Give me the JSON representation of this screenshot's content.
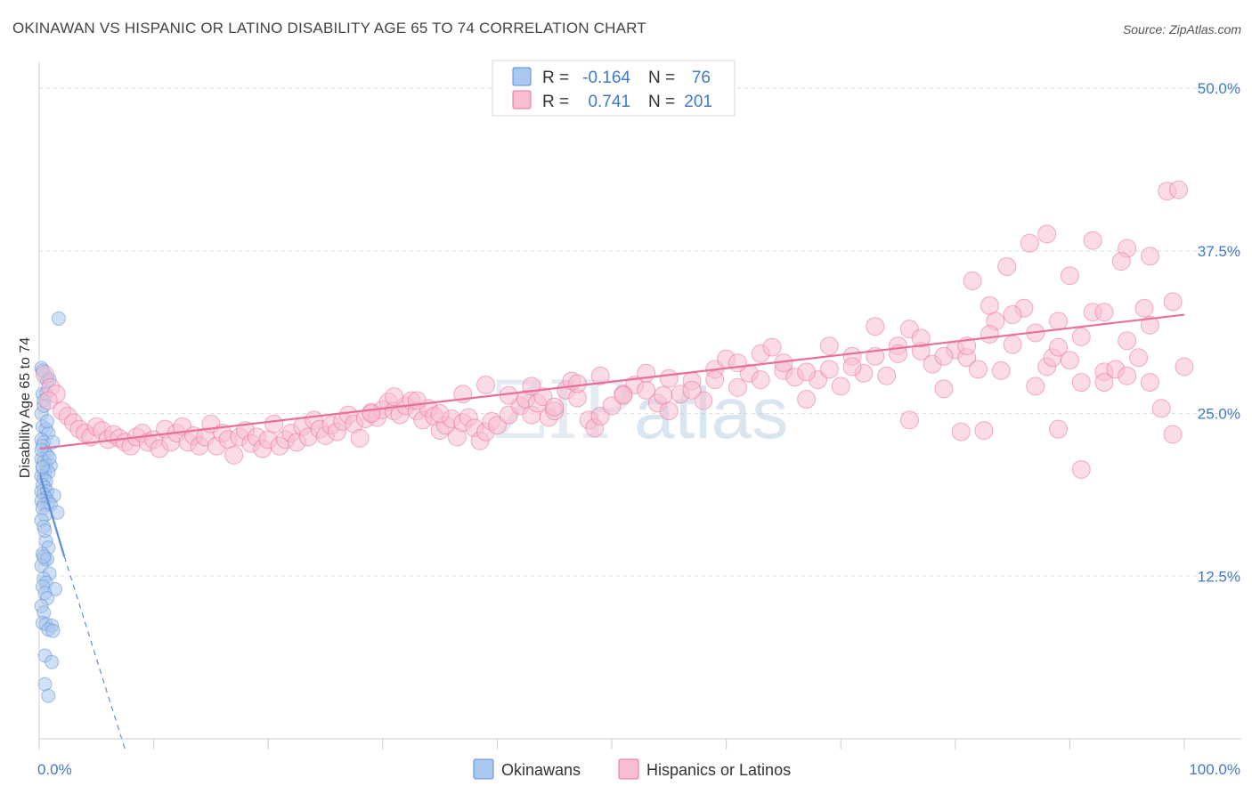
{
  "title": "OKINAWAN VS HISPANIC OR LATINO DISABILITY AGE 65 TO 74 CORRELATION CHART",
  "source": "Source: ZipAtlas.com",
  "watermark": {
    "a": "ZIP",
    "b": "atlas"
  },
  "chart_data": {
    "type": "scatter",
    "ylabel": "Disability Age 65 to 74",
    "xlim": [
      0,
      100
    ],
    "ylim": [
      0,
      52
    ],
    "x_tick_labels": [
      {
        "v": 0,
        "label": "0.0%"
      },
      {
        "v": 100,
        "label": "100.0%"
      }
    ],
    "y_tick_labels": [
      {
        "v": 12.5,
        "label": "12.5%"
      },
      {
        "v": 25,
        "label": "25.0%"
      },
      {
        "v": 37.5,
        "label": "37.5%"
      },
      {
        "v": 50,
        "label": "50.0%"
      }
    ],
    "grid": true,
    "legend": {
      "placement": "top-center",
      "rows": [
        {
          "r_label": "R =",
          "r_value": "-0.164",
          "n_label": "N =",
          "n_value": "76",
          "color": "#8ab4ea"
        },
        {
          "r_label": "R =",
          "r_value": "0.741",
          "n_label": "N =",
          "n_value": "201",
          "color": "#f3a5c0"
        }
      ]
    },
    "series": [
      {
        "name": "Okinawans",
        "color": "#5b8fd6",
        "fill": "#a9c7ef",
        "trend": {
          "x0": 0,
          "y0": 20.5,
          "x1": 2.2,
          "y1": 14.0,
          "dash_to_x": 7.5,
          "dash_to_y": -1
        },
        "points": [
          [
            0.2,
            28.5
          ],
          [
            0.5,
            28
          ],
          [
            0.7,
            27.5
          ],
          [
            0.3,
            26.5
          ],
          [
            0.6,
            26.5
          ],
          [
            0.4,
            26
          ],
          [
            0.2,
            25
          ],
          [
            0.3,
            24
          ],
          [
            0.6,
            23.8
          ],
          [
            0.8,
            23.5
          ],
          [
            0.2,
            23
          ],
          [
            0.4,
            22.8
          ],
          [
            1.2,
            22.8
          ],
          [
            0.3,
            22.5
          ],
          [
            0.5,
            22
          ],
          [
            0.7,
            21.8
          ],
          [
            0.2,
            21.5
          ],
          [
            0.4,
            21.3
          ],
          [
            0.6,
            21
          ],
          [
            1.0,
            21
          ],
          [
            0.3,
            20.8
          ],
          [
            0.5,
            20.5
          ],
          [
            0.8,
            20.5
          ],
          [
            0.2,
            20.2
          ],
          [
            0.4,
            20
          ],
          [
            0.6,
            19.8
          ],
          [
            0.3,
            19.5
          ],
          [
            0.5,
            19.3
          ],
          [
            0.2,
            19
          ],
          [
            0.7,
            19
          ],
          [
            0.4,
            18.8
          ],
          [
            1.3,
            18.7
          ],
          [
            0.6,
            18.5
          ],
          [
            0.2,
            18.3
          ],
          [
            0.8,
            18.2
          ],
          [
            0.4,
            18
          ],
          [
            1.0,
            18
          ],
          [
            0.3,
            17.7
          ],
          [
            1.6,
            17.4
          ],
          [
            0.5,
            17.2
          ],
          [
            0.2,
            16.8
          ],
          [
            0.4,
            16.3
          ],
          [
            0.6,
            15.2
          ],
          [
            0.8,
            14.7
          ],
          [
            0.3,
            14.2
          ],
          [
            0.5,
            13.8
          ],
          [
            0.7,
            13.8
          ],
          [
            0.2,
            13.3
          ],
          [
            0.9,
            12.7
          ],
          [
            0.4,
            12.3
          ],
          [
            0.6,
            12
          ],
          [
            0.3,
            11.7
          ],
          [
            1.4,
            11.5
          ],
          [
            0.5,
            11.2
          ],
          [
            0.7,
            10.8
          ],
          [
            0.2,
            10.2
          ],
          [
            0.4,
            9.7
          ],
          [
            0.3,
            8.9
          ],
          [
            0.6,
            8.8
          ],
          [
            1.1,
            8.7
          ],
          [
            0.8,
            8.4
          ],
          [
            1.2,
            8.3
          ],
          [
            0.5,
            6.4
          ],
          [
            1.1,
            5.9
          ],
          [
            0.5,
            4.2
          ],
          [
            0.8,
            3.3
          ],
          [
            1.7,
            32.3
          ],
          [
            0.3,
            28.3
          ],
          [
            0.9,
            27.6
          ],
          [
            0.4,
            25.6
          ],
          [
            0.7,
            24.4
          ],
          [
            0.2,
            22.2
          ],
          [
            0.9,
            21.6
          ],
          [
            0.3,
            20.9
          ],
          [
            0.5,
            16.0
          ],
          [
            0.4,
            14.0
          ]
        ]
      },
      {
        "name": "Hispanics or Latinos",
        "color": "#e86f9b",
        "fill": "#f7bdd1",
        "trend": {
          "x0": 0,
          "y0": 22.3,
          "x1": 100,
          "y1": 32.6
        },
        "points": [
          [
            0.5,
            28
          ],
          [
            1,
            27
          ],
          [
            1.5,
            26.5
          ],
          [
            0.8,
            26
          ],
          [
            2,
            25.2
          ],
          [
            2.5,
            24.8
          ],
          [
            3,
            24.3
          ],
          [
            3.5,
            23.8
          ],
          [
            4,
            23.5
          ],
          [
            4.5,
            23.2
          ],
          [
            5,
            24
          ],
          [
            5.5,
            23.7
          ],
          [
            6,
            23
          ],
          [
            6.5,
            23.4
          ],
          [
            7,
            23.1
          ],
          [
            7.5,
            22.8
          ],
          [
            8,
            22.5
          ],
          [
            8.5,
            23.2
          ],
          [
            9,
            23.5
          ],
          [
            9.5,
            22.8
          ],
          [
            10,
            23
          ],
          [
            10.5,
            22.3
          ],
          [
            11,
            23.8
          ],
          [
            11.5,
            22.8
          ],
          [
            12,
            23.5
          ],
          [
            12.5,
            24
          ],
          [
            13,
            22.8
          ],
          [
            13.5,
            23.3
          ],
          [
            14,
            22.5
          ],
          [
            14.5,
            23.2
          ],
          [
            15,
            24.2
          ],
          [
            15.5,
            22.5
          ],
          [
            16,
            23.5
          ],
          [
            16.5,
            23
          ],
          [
            17,
            21.8
          ],
          [
            17.5,
            23.2
          ],
          [
            18,
            23.7
          ],
          [
            18.5,
            22.7
          ],
          [
            19,
            23.2
          ],
          [
            19.5,
            22.3
          ],
          [
            20,
            23
          ],
          [
            20.5,
            24.2
          ],
          [
            21,
            22.5
          ],
          [
            21.5,
            23
          ],
          [
            22,
            23.5
          ],
          [
            22.5,
            22.8
          ],
          [
            23,
            24
          ],
          [
            23.5,
            23.2
          ],
          [
            24,
            24.5
          ],
          [
            24.5,
            23.8
          ],
          [
            25,
            23.3
          ],
          [
            25.5,
            24.1
          ],
          [
            26,
            23.6
          ],
          [
            26.5,
            24.4
          ],
          [
            27,
            24.9
          ],
          [
            27.5,
            24.2
          ],
          [
            28,
            23.1
          ],
          [
            28.5,
            24.6
          ],
          [
            29,
            25.1
          ],
          [
            29.5,
            24.7
          ],
          [
            30,
            25.3
          ],
          [
            30.5,
            25.9
          ],
          [
            31,
            25.2
          ],
          [
            31.5,
            24.9
          ],
          [
            32,
            25.6
          ],
          [
            32.5,
            26
          ],
          [
            33,
            25.2
          ],
          [
            33.5,
            24.5
          ],
          [
            34,
            25.4
          ],
          [
            34.5,
            24.8
          ],
          [
            35,
            23.7
          ],
          [
            35.5,
            24.1
          ],
          [
            36,
            24.6
          ],
          [
            36.5,
            23.2
          ],
          [
            37,
            24.3
          ],
          [
            37.5,
            24.7
          ],
          [
            38,
            23.9
          ],
          [
            38.5,
            22.9
          ],
          [
            39,
            23.6
          ],
          [
            39.5,
            24.4
          ],
          [
            40,
            24.1
          ],
          [
            41,
            24.9
          ],
          [
            42,
            25.6
          ],
          [
            42.5,
            26.1
          ],
          [
            43,
            24.9
          ],
          [
            43.5,
            25.8
          ],
          [
            44,
            26.3
          ],
          [
            44.5,
            24.7
          ],
          [
            45,
            25.2
          ],
          [
            46,
            26.8
          ],
          [
            46.5,
            27.5
          ],
          [
            47,
            26.2
          ],
          [
            48,
            24.5
          ],
          [
            48.5,
            23.9
          ],
          [
            49,
            24.8
          ],
          [
            50,
            25.6
          ],
          [
            51,
            26.5
          ],
          [
            52,
            27.2
          ],
          [
            53,
            26.8
          ],
          [
            54,
            25.8
          ],
          [
            54.5,
            26.4
          ],
          [
            55,
            25.2
          ],
          [
            56,
            26.5
          ],
          [
            57,
            27.5
          ],
          [
            58,
            26
          ],
          [
            59,
            28.4
          ],
          [
            60,
            29.2
          ],
          [
            61,
            27
          ],
          [
            62,
            28.1
          ],
          [
            63,
            29.6
          ],
          [
            64,
            30.1
          ],
          [
            65,
            28.3
          ],
          [
            66,
            27.8
          ],
          [
            67,
            26.1
          ],
          [
            68,
            27.6
          ],
          [
            69,
            28.4
          ],
          [
            70,
            27.1
          ],
          [
            71,
            29.4
          ],
          [
            72,
            28.1
          ],
          [
            73,
            31.7
          ],
          [
            74,
            27.9
          ],
          [
            75,
            30.2
          ],
          [
            76,
            31.5
          ],
          [
            77,
            29.8
          ],
          [
            78,
            28.8
          ],
          [
            79,
            26.9
          ],
          [
            80,
            29.9
          ],
          [
            81,
            29.3
          ],
          [
            81.5,
            35.2
          ],
          [
            82,
            28.4
          ],
          [
            83,
            33.3
          ],
          [
            83.5,
            32.1
          ],
          [
            84,
            28.3
          ],
          [
            85,
            30.3
          ],
          [
            86,
            33.1
          ],
          [
            87,
            27.1
          ],
          [
            88,
            28.6
          ],
          [
            88.5,
            29.3
          ],
          [
            89,
            30.1
          ],
          [
            90,
            29.1
          ],
          [
            91,
            27.4
          ],
          [
            92,
            32.8
          ],
          [
            93,
            28.2
          ],
          [
            94,
            28.4
          ],
          [
            95,
            27.9
          ],
          [
            96,
            29.3
          ],
          [
            97,
            27.4
          ],
          [
            98,
            25.4
          ],
          [
            99,
            23.4
          ],
          [
            100,
            28.6
          ],
          [
            29,
            25
          ],
          [
            31,
            26.3
          ],
          [
            33,
            26
          ],
          [
            35,
            25
          ],
          [
            37,
            26.5
          ],
          [
            39,
            27.2
          ],
          [
            41,
            26.4
          ],
          [
            43,
            27.1
          ],
          [
            45,
            25.5
          ],
          [
            47,
            27.3
          ],
          [
            49,
            27.9
          ],
          [
            51,
            26.4
          ],
          [
            53,
            28.1
          ],
          [
            55,
            27.7
          ],
          [
            57,
            26.8
          ],
          [
            59,
            27.6
          ],
          [
            61,
            28.9
          ],
          [
            63,
            27.6
          ],
          [
            65,
            28.9
          ],
          [
            67,
            28.2
          ],
          [
            69,
            30.2
          ],
          [
            71,
            28.6
          ],
          [
            73,
            29.4
          ],
          [
            75,
            29.6
          ],
          [
            77,
            30.8
          ],
          [
            79,
            29.4
          ],
          [
            81,
            30.2
          ],
          [
            83,
            31.1
          ],
          [
            85,
            32.6
          ],
          [
            87,
            31.2
          ],
          [
            89,
            32.1
          ],
          [
            91,
            30.9
          ],
          [
            93,
            32.8
          ],
          [
            95,
            30.6
          ],
          [
            97,
            31.8
          ],
          [
            99,
            33.6
          ],
          [
            84.5,
            36.3
          ],
          [
            86.5,
            38.1
          ],
          [
            88,
            38.8
          ],
          [
            90,
            35.6
          ],
          [
            92,
            38.3
          ],
          [
            95,
            37.7
          ],
          [
            97,
            37.1
          ],
          [
            98.5,
            42.1
          ],
          [
            99.5,
            42.2
          ],
          [
            93,
            27.4
          ],
          [
            91,
            20.7
          ],
          [
            76,
            24.5
          ],
          [
            80.5,
            23.6
          ],
          [
            82.5,
            23.7
          ],
          [
            89,
            23.8
          ],
          [
            94.5,
            36.7
          ],
          [
            96.5,
            33.1
          ]
        ]
      }
    ]
  }
}
